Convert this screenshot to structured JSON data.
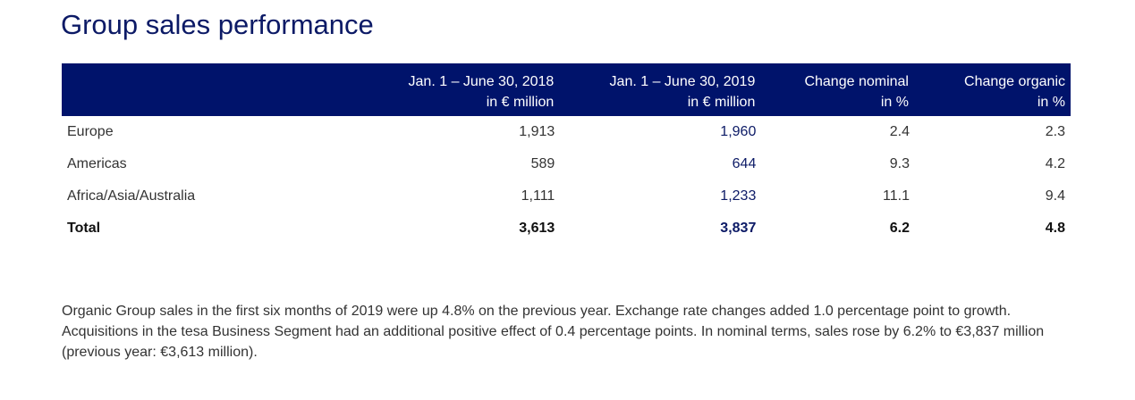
{
  "title": "Group sales performance",
  "table": {
    "headers": [
      {
        "line1": "",
        "line2": ""
      },
      {
        "line1": "Jan. 1 – June 30, 2018",
        "line2": "in € million"
      },
      {
        "line1": "Jan. 1 – June 30, 2019",
        "line2": "in € million"
      },
      {
        "line1": "Change nominal",
        "line2": "in %"
      },
      {
        "line1": "Change organic",
        "line2": "in %"
      }
    ],
    "rows": [
      [
        "Europe",
        "1,913",
        "1,960",
        "2.4",
        "2.3"
      ],
      [
        "Americas",
        "589",
        "644",
        "9.3",
        "4.2"
      ],
      [
        "Africa/Asia/Australia",
        "1,111",
        "1,233",
        "11.1",
        "9.4"
      ],
      [
        "Total",
        "3,613",
        "3,837",
        "6.2",
        "4.8"
      ]
    ]
  },
  "paragraph": "Organic Group sales in the first six months of 2019 were up 4.8% on the previous year. Exchange rate changes added 1.0 percentage point to growth. Acquisitions in the tesa Business Segment had an additional positive effect of 0.4 percentage points. In nominal terms, sales rose by 6.2% to €3,837 million (previous year: €3,613 million).",
  "colors": {
    "navy": "#00136b"
  }
}
